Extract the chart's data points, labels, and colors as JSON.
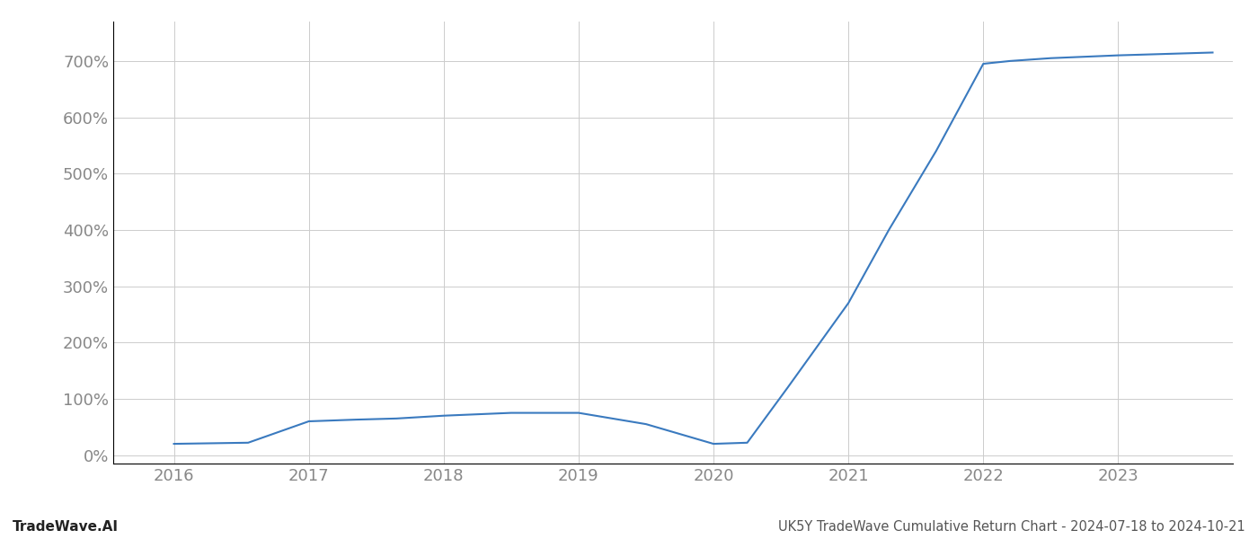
{
  "title": "UK5Y TradeWave Cumulative Return Chart - 2024-07-18 to 2024-10-21",
  "watermark": "TradeWave.AI",
  "line_color": "#3a7abf",
  "background_color": "#ffffff",
  "grid_color": "#cccccc",
  "x_values": [
    2016.0,
    2016.55,
    2017.0,
    2017.35,
    2017.65,
    2018.0,
    2018.5,
    2019.0,
    2019.5,
    2020.0,
    2020.25,
    2020.55,
    2021.0,
    2021.3,
    2021.65,
    2022.0,
    2022.2,
    2022.5,
    2023.0,
    2023.7
  ],
  "y_values": [
    20,
    22,
    60,
    63,
    65,
    70,
    75,
    75,
    55,
    20,
    22,
    120,
    270,
    400,
    540,
    695,
    700,
    705,
    710,
    715
  ],
  "xlim": [
    2015.55,
    2023.85
  ],
  "ylim": [
    -15,
    770
  ],
  "yticks": [
    0,
    100,
    200,
    300,
    400,
    500,
    600,
    700
  ],
  "xticks": [
    2016,
    2017,
    2018,
    2019,
    2020,
    2021,
    2022,
    2023
  ],
  "line_width": 1.5,
  "tick_label_color": "#888888",
  "title_color": "#555555",
  "watermark_color": "#222222",
  "title_fontsize": 10.5,
  "watermark_fontsize": 11,
  "tick_fontsize": 13
}
